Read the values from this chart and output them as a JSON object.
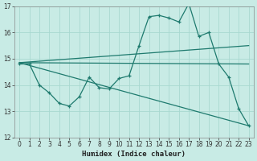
{
  "xlabel": "Humidex (Indice chaleur)",
  "xlim": [
    -0.5,
    23.5
  ],
  "ylim": [
    12,
    17
  ],
  "yticks": [
    12,
    13,
    14,
    15,
    16,
    17
  ],
  "xticks": [
    0,
    1,
    2,
    3,
    4,
    5,
    6,
    7,
    8,
    9,
    10,
    11,
    12,
    13,
    14,
    15,
    16,
    17,
    18,
    19,
    20,
    21,
    22,
    23
  ],
  "bg_color": "#c8ebe5",
  "grid_color": "#a8d8d0",
  "line_color": "#1e7a6e",
  "line1_x": [
    0,
    1,
    2,
    3,
    4,
    5,
    6,
    7,
    8,
    9,
    10,
    11,
    12,
    13,
    14,
    15,
    16,
    17,
    18,
    19,
    20,
    21,
    22,
    23
  ],
  "line1_y": [
    14.8,
    14.8,
    14.0,
    13.7,
    13.3,
    13.2,
    13.55,
    14.3,
    13.9,
    13.85,
    14.25,
    14.35,
    15.5,
    16.6,
    16.65,
    16.55,
    16.4,
    17.1,
    15.85,
    16.0,
    14.8,
    14.3,
    13.1,
    12.45
  ],
  "line2_x": [
    0,
    23
  ],
  "line2_y": [
    14.85,
    15.5
  ],
  "line3_x": [
    0,
    23
  ],
  "line3_y": [
    14.85,
    14.8
  ],
  "line4_x": [
    0,
    23
  ],
  "line4_y": [
    14.85,
    12.45
  ]
}
